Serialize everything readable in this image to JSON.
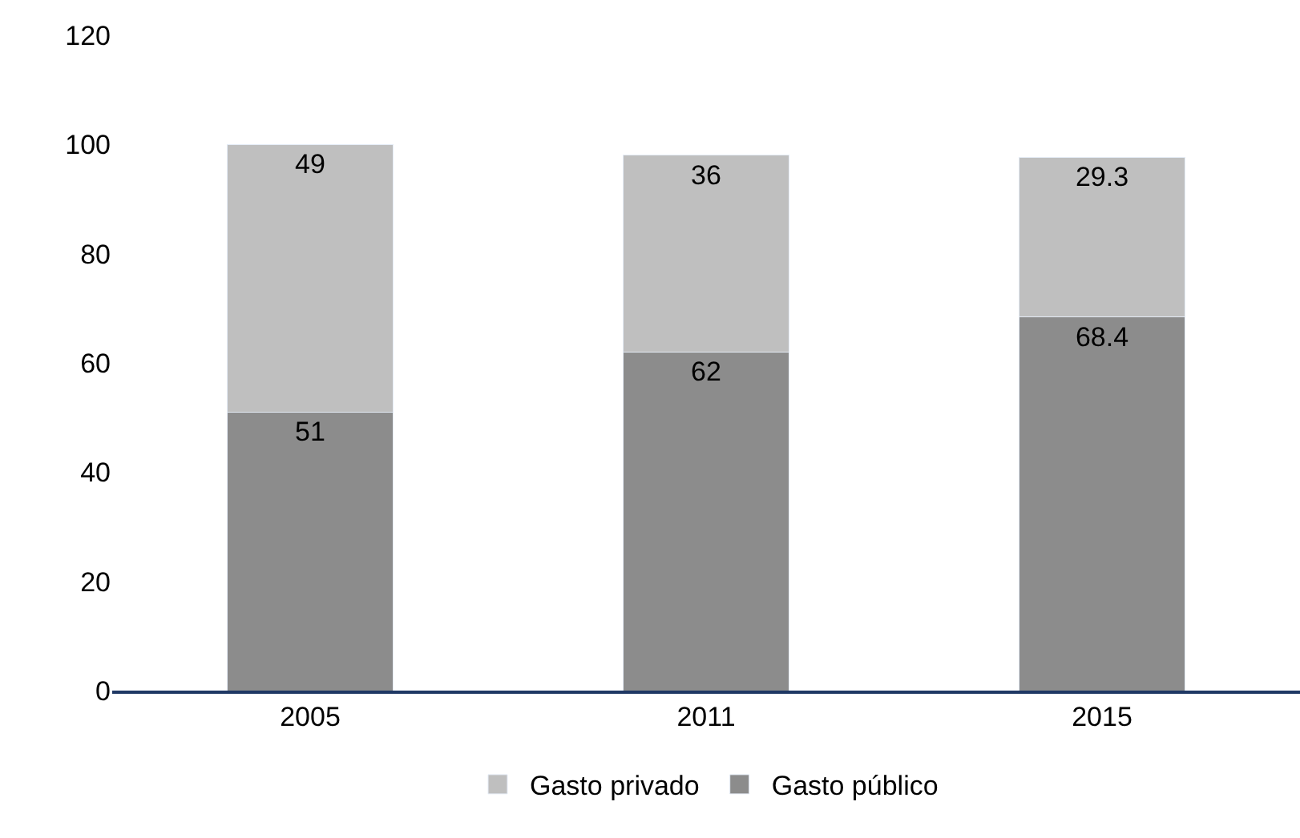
{
  "chart_data": {
    "type": "bar",
    "stacked": true,
    "categories": [
      "2005",
      "2011",
      "2015"
    ],
    "series": [
      {
        "name": "Gasto público",
        "color": "#8c8c8c",
        "values": [
          51,
          62,
          68.4
        ]
      },
      {
        "name": "Gasto privado",
        "color": "#bfbfbf",
        "values": [
          49,
          36,
          29.3
        ]
      }
    ],
    "ylim": [
      0,
      120
    ],
    "yticks": [
      0,
      20,
      40,
      60,
      80,
      100,
      120
    ],
    "grid": false,
    "legend": "bottom",
    "data_labels": true
  }
}
